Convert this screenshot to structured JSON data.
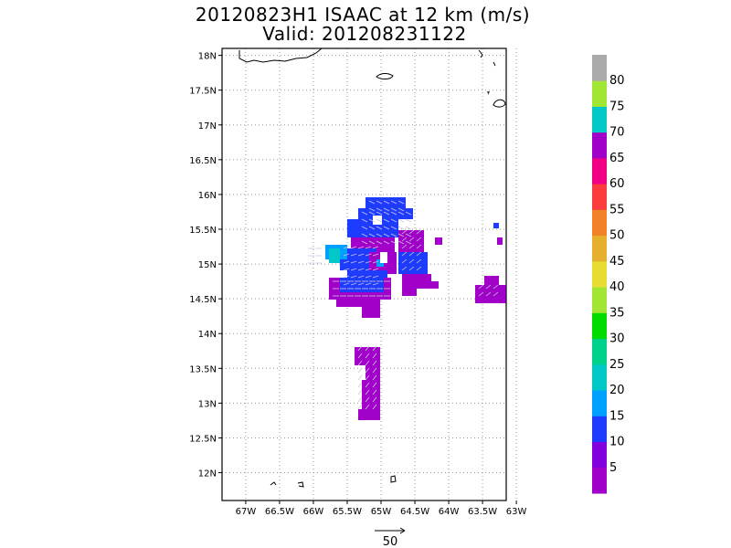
{
  "title": {
    "line1": "20120823H1 ISAAC at 12 km (m/s)",
    "line2": "Valid: 201208231122"
  },
  "map": {
    "lat_ticks": [
      "18N",
      "17.5N",
      "17N",
      "16.5N",
      "16N",
      "15.5N",
      "15N",
      "14.5N",
      "14N",
      "13.5N",
      "13N",
      "12.5N",
      "12N"
    ],
    "lon_ticks": [
      "67W",
      "66.5W",
      "66W",
      "65.5W",
      "65W",
      "64.5W",
      "64W",
      "63.5W",
      "63W"
    ],
    "lat_range": [
      11.6,
      18.1
    ],
    "lon_range": [
      -67.35,
      -63.15
    ],
    "gridlines": "dotted",
    "reference_vector": {
      "label": "50",
      "icon": "arrow-right-icon"
    }
  },
  "colorbar": {
    "labels": [
      "5",
      "10",
      "15",
      "20",
      "25",
      "30",
      "35",
      "40",
      "45",
      "50",
      "55",
      "60",
      "65",
      "70",
      "75",
      "80"
    ],
    "colors": [
      "#a000c8",
      "#8200dc",
      "#1e3cff",
      "#00a0ff",
      "#00c8c8",
      "#00d28c",
      "#00dc00",
      "#a0e632",
      "#e6dc32",
      "#e6af2d",
      "#f08228",
      "#fa3c3c",
      "#f00082",
      "#a000c8",
      "#00c8c8",
      "#a0e632",
      "#aaaaaa"
    ]
  }
}
